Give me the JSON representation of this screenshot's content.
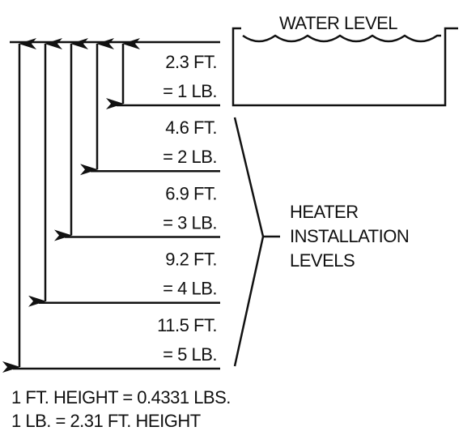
{
  "water_level": "WATER LEVEL",
  "levels": [
    {
      "feet": "2.3 FT.",
      "pressure": "= 1 LB."
    },
    {
      "feet": "4.6 FT.",
      "pressure": "= 2 LB."
    },
    {
      "feet": "6.9 FT.",
      "pressure": "= 3 LB."
    },
    {
      "feet": "9.2 FT.",
      "pressure": "= 4 LB."
    },
    {
      "feet": "11.5 FT.",
      "pressure": "= 5 LB."
    }
  ],
  "brace_label": [
    "HEATER",
    "INSTALLATION",
    "LEVELS"
  ],
  "footer": [
    "1 FT. HEIGHT = 0.4331 LBS.",
    "1 LB. = 2.31 FT. HEIGHT"
  ]
}
